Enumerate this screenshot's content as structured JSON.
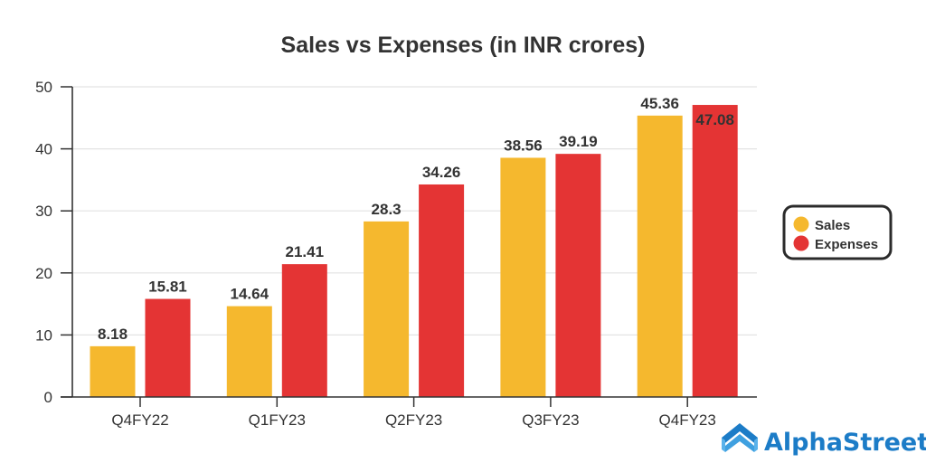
{
  "chart_data": {
    "type": "bar",
    "title": "Sales vs Expenses (in INR crores)",
    "xlabel": "",
    "ylabel": "",
    "categories": [
      "Q4FY22",
      "Q1FY23",
      "Q2FY23",
      "Q3FY23",
      "Q4FY23"
    ],
    "series": [
      {
        "name": "Sales",
        "color": "#F5B82E",
        "values": [
          8.18,
          14.64,
          28.3,
          38.56,
          45.36
        ],
        "labels": [
          "8.18",
          "14.64",
          "28.3",
          "38.56",
          "45.36"
        ]
      },
      {
        "name": "Expenses",
        "color": "#E43434",
        "values": [
          15.81,
          21.41,
          34.26,
          39.19,
          47.08
        ],
        "labels": [
          "15.81",
          "21.41",
          "34.26",
          "39.19",
          "47.08"
        ]
      }
    ],
    "ylim": [
      0,
      50
    ],
    "yticks": [
      0,
      10,
      20,
      30,
      40,
      50
    ],
    "ytick_labels": [
      "0",
      "10",
      "20",
      "30",
      "40",
      "50"
    ],
    "grid": true,
    "legend_position": "right"
  },
  "branding": {
    "logo_text": "AlphaStreet",
    "logo_color": "#1C7CC7",
    "icon": "alphastreet-chevron-logo"
  }
}
